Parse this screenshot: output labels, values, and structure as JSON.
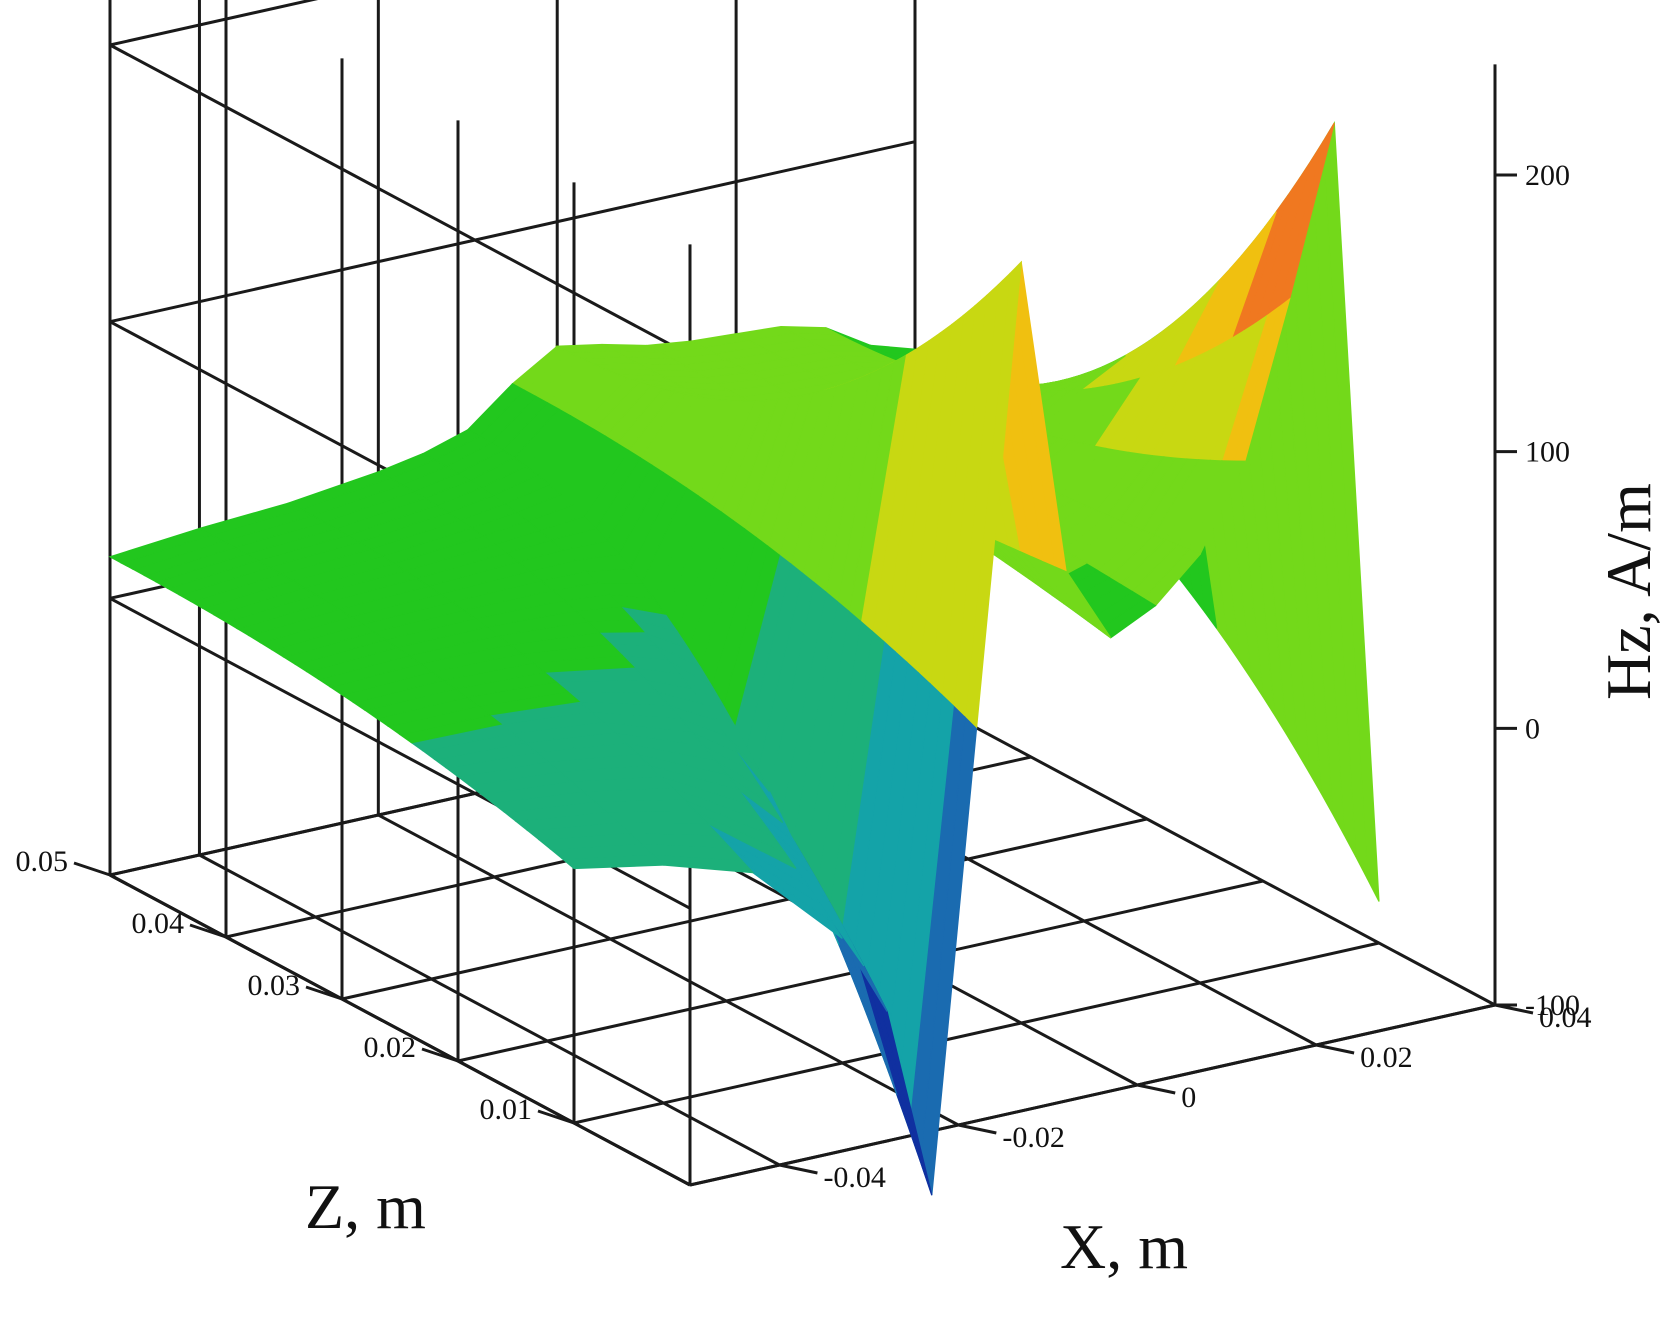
{
  "chart_data": {
    "type": "surface",
    "title": "",
    "xlabel": "X, m",
    "ylabel": "Z, m",
    "zlabel": "Hz, A/m",
    "xlim": [
      -0.05,
      0.04
    ],
    "ylim": [
      0.0,
      0.05
    ],
    "zlim": [
      -100,
      200
    ],
    "x_ticks": [
      -0.04,
      -0.02,
      0,
      0.02,
      0.04
    ],
    "x_tick_labels": [
      "-0.04",
      "-0.02",
      "0",
      "0.02",
      "0.04"
    ],
    "y_ticks": [
      0.01,
      0.02,
      0.03,
      0.04,
      0.05
    ],
    "y_tick_labels": [
      "0.01",
      "0.02",
      "0.03",
      "0.04",
      "0.05"
    ],
    "z_ticks": [
      -100,
      0,
      100,
      200
    ],
    "z_tick_labels": [
      "-100",
      "0",
      "100",
      "200"
    ],
    "grid": true,
    "colormap": [
      "#4a1a8c",
      "#1030a0",
      "#1a6bb0",
      "#14a3a8",
      "#1cb07a",
      "#22c71e",
      "#73d91a",
      "#c8d812",
      "#f0c010",
      "#f07820",
      "#e8321e"
    ],
    "surface_profile": {
      "z_m": [
        0.01,
        0.05
      ],
      "x_m": [
        -0.05,
        -0.04,
        -0.03,
        -0.02,
        -0.015,
        -0.01,
        -0.005,
        0,
        0.005,
        0.01,
        0.015,
        0.02,
        0.025,
        0.03,
        0.035,
        0.04
      ],
      "hz_at_z_0_01": [
        -8,
        -14,
        -24,
        -55,
        -85,
        -155,
        10,
        175,
        60,
        32,
        40,
        55,
        85,
        140,
        200,
        -85
      ],
      "hz_at_z_0_05": [
        15,
        18,
        20,
        24,
        27,
        32,
        45,
        55,
        52,
        48,
        46,
        45,
        44,
        40,
        30,
        25
      ]
    }
  }
}
